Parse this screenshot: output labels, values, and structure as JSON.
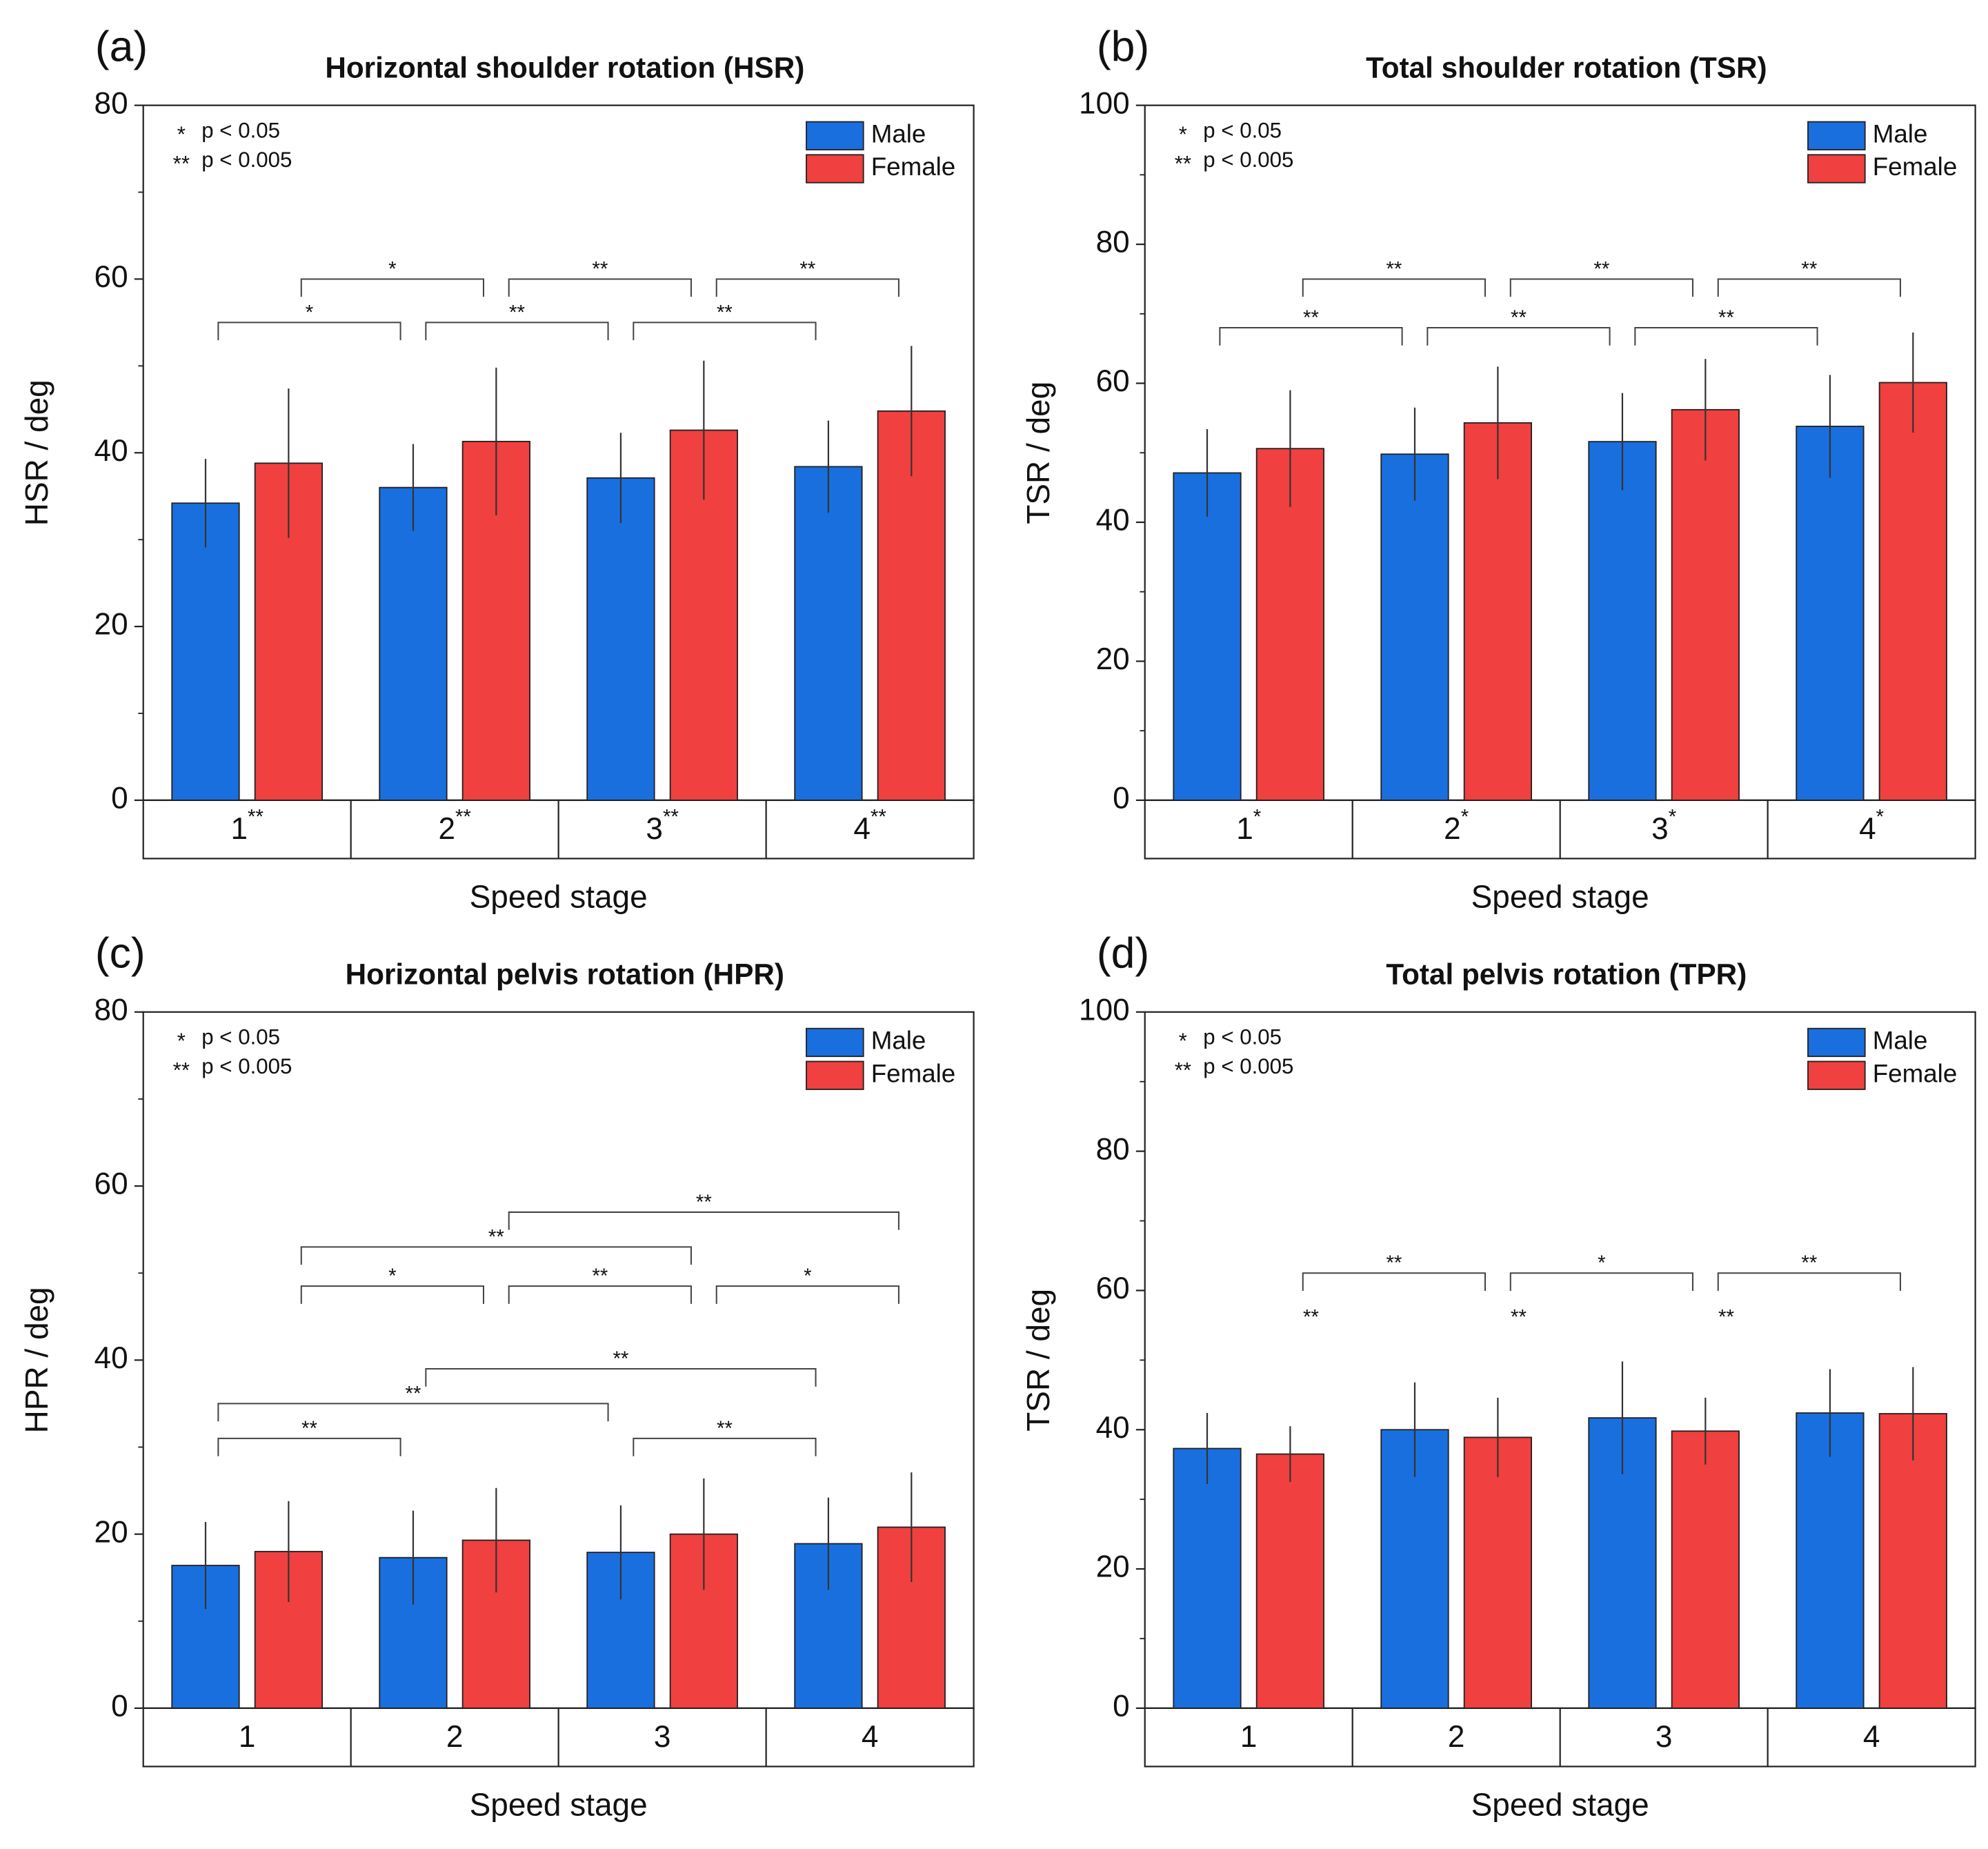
{
  "chart_data": [
    {
      "type": "bar",
      "panel_label": "(a)",
      "title": "Horizontal shoulder rotation (HSR)",
      "x_label": "Speed stage",
      "y_label": "HSR / deg",
      "categories": [
        "1",
        "2",
        "3",
        "4"
      ],
      "category_superscripts": [
        "**",
        "**",
        "**",
        "**"
      ],
      "series": [
        {
          "name": "Male",
          "color": "#1a6fdf",
          "values": [
            34.2,
            36,
            37.1,
            38.4
          ],
          "errors": [
            5.1,
            5,
            5.2,
            5.3
          ]
        },
        {
          "name": "Female",
          "color": "#f0403f",
          "values": [
            38.8,
            41.3,
            42.6,
            44.8
          ],
          "errors": [
            8.6,
            8.5,
            8,
            7.5
          ]
        }
      ],
      "ylim": [
        0,
        80
      ],
      "yticks": [
        0,
        20,
        40,
        60,
        80
      ],
      "notes": [
        {
          "symbol": "*",
          "text": "p < 0.05"
        },
        {
          "symbol": "**",
          "text": "p < 0.005"
        }
      ],
      "brackets": [
        {
          "series": 1,
          "from": 0,
          "to": 1,
          "y": 60,
          "label": "*"
        },
        {
          "series": 1,
          "from": 1,
          "to": 2,
          "y": 60,
          "label": "**"
        },
        {
          "series": 1,
          "from": 2,
          "to": 3,
          "y": 60,
          "label": "**"
        },
        {
          "series": 0,
          "from": 0,
          "to": 1,
          "y": 55,
          "label": "*"
        },
        {
          "series": 0,
          "from": 1,
          "to": 2,
          "y": 55,
          "label": "**"
        },
        {
          "series": 0,
          "from": 2,
          "to": 3,
          "y": 55,
          "label": "**"
        }
      ]
    },
    {
      "type": "bar",
      "panel_label": "(b)",
      "title": "Total shoulder rotation (TSR)",
      "x_label": "Speed stage",
      "y_label": "TSR / deg",
      "categories": [
        "1",
        "2",
        "3",
        "4"
      ],
      "category_superscripts": [
        "*",
        "*",
        "*",
        "*"
      ],
      "series": [
        {
          "name": "Male",
          "color": "#1a6fdf",
          "values": [
            47.1,
            49.8,
            51.6,
            53.8
          ],
          "errors": [
            6.3,
            6.7,
            7,
            7.4
          ]
        },
        {
          "name": "Female",
          "color": "#f0403f",
          "values": [
            50.6,
            54.3,
            56.2,
            60.1
          ],
          "errors": [
            8.4,
            8.1,
            7.3,
            7.2
          ]
        }
      ],
      "ylim": [
        0,
        100
      ],
      "yticks": [
        0,
        20,
        40,
        60,
        80,
        100
      ],
      "notes": [
        {
          "symbol": "*",
          "text": "p < 0.05"
        },
        {
          "symbol": "**",
          "text": "p < 0.005"
        }
      ],
      "brackets": [
        {
          "series": 1,
          "from": 0,
          "to": 1,
          "y": 75,
          "label": "**"
        },
        {
          "series": 1,
          "from": 1,
          "to": 2,
          "y": 75,
          "label": "**"
        },
        {
          "series": 1,
          "from": 2,
          "to": 3,
          "y": 75,
          "label": "**"
        },
        {
          "series": 0,
          "from": 0,
          "to": 1,
          "y": 68,
          "label": "**"
        },
        {
          "series": 0,
          "from": 1,
          "to": 2,
          "y": 68,
          "label": "**"
        },
        {
          "series": 0,
          "from": 2,
          "to": 3,
          "y": 68,
          "label": "**"
        }
      ]
    },
    {
      "type": "bar",
      "panel_label": "(c)",
      "title": "Horizontal pelvis rotation (HPR)",
      "x_label": "Speed stage",
      "y_label": "HPR / deg",
      "categories": [
        "1",
        "2",
        "3",
        "4"
      ],
      "series": [
        {
          "name": "Male",
          "color": "#1a6fdf",
          "values": [
            16.4,
            17.3,
            17.9,
            18.9
          ],
          "errors": [
            5,
            5.4,
            5.4,
            5.3
          ]
        },
        {
          "name": "Female",
          "color": "#f0403f",
          "values": [
            18,
            19.3,
            20,
            20.8
          ],
          "errors": [
            5.8,
            6,
            6.4,
            6.3
          ]
        }
      ],
      "ylim": [
        0,
        80
      ],
      "yticks": [
        0,
        20,
        40,
        60,
        80
      ],
      "notes": [
        {
          "symbol": "*",
          "text": "p < 0.05"
        },
        {
          "symbol": "**",
          "text": "p < 0.005"
        }
      ],
      "brackets": [
        {
          "series": 1,
          "from": 1,
          "to": 3,
          "y": 57,
          "label": "**"
        },
        {
          "series": 1,
          "from": 0,
          "to": 2,
          "y": 53,
          "label": "**"
        },
        {
          "series": 1,
          "from": 0,
          "to": 1,
          "y": 48.5,
          "label": "*"
        },
        {
          "series": 1,
          "from": 1,
          "to": 2,
          "y": 48.5,
          "label": "**"
        },
        {
          "series": 1,
          "from": 2,
          "to": 3,
          "y": 48.5,
          "label": "*"
        },
        {
          "series": 0,
          "from": 1,
          "to": 3,
          "y": 39,
          "label": "**"
        },
        {
          "series": 0,
          "from": 0,
          "to": 2,
          "y": 35,
          "label": "**"
        },
        {
          "series": 0,
          "from": 0,
          "to": 1,
          "y": 31,
          "label": "**"
        },
        {
          "series": 0,
          "from": 2,
          "to": 3,
          "y": 31,
          "label": "**"
        }
      ]
    },
    {
      "type": "bar",
      "panel_label": "(d)",
      "title": "Total pelvis rotation (TPR)",
      "x_label": "Speed stage",
      "y_label": "TSR / deg",
      "categories": [
        "1",
        "2",
        "3",
        "4"
      ],
      "series": [
        {
          "name": "Male",
          "color": "#1a6fdf",
          "values": [
            37.3,
            40,
            41.7,
            42.4
          ],
          "errors": [
            5.1,
            6.8,
            8.1,
            6.3
          ]
        },
        {
          "name": "Female",
          "color": "#f0403f",
          "values": [
            36.5,
            38.9,
            39.8,
            42.3
          ],
          "errors": [
            4,
            5.7,
            4.8,
            6.7
          ]
        }
      ],
      "ylim": [
        0,
        100
      ],
      "yticks": [
        0,
        20,
        40,
        60,
        80,
        100
      ],
      "notes": [
        {
          "symbol": "*",
          "text": "p < 0.05"
        },
        {
          "symbol": "**",
          "text": "p < 0.005"
        }
      ],
      "brackets": [
        {
          "series": 1,
          "from": 0,
          "to": 1,
          "y": 62.5,
          "label": "**"
        },
        {
          "series": 1,
          "from": 1,
          "to": 2,
          "y": 62.5,
          "label": "*"
        },
        {
          "series": 1,
          "from": 2,
          "to": 3,
          "y": 62.5,
          "label": "**"
        },
        {
          "series": 0,
          "from": 0,
          "to": 1,
          "y": 56,
          "label": "**",
          "line": false
        },
        {
          "series": 0,
          "from": 1,
          "to": 2,
          "y": 56,
          "label": "**",
          "line": false
        },
        {
          "series": 0,
          "from": 2,
          "to": 3,
          "y": 56,
          "label": "**",
          "line": false
        }
      ]
    }
  ]
}
